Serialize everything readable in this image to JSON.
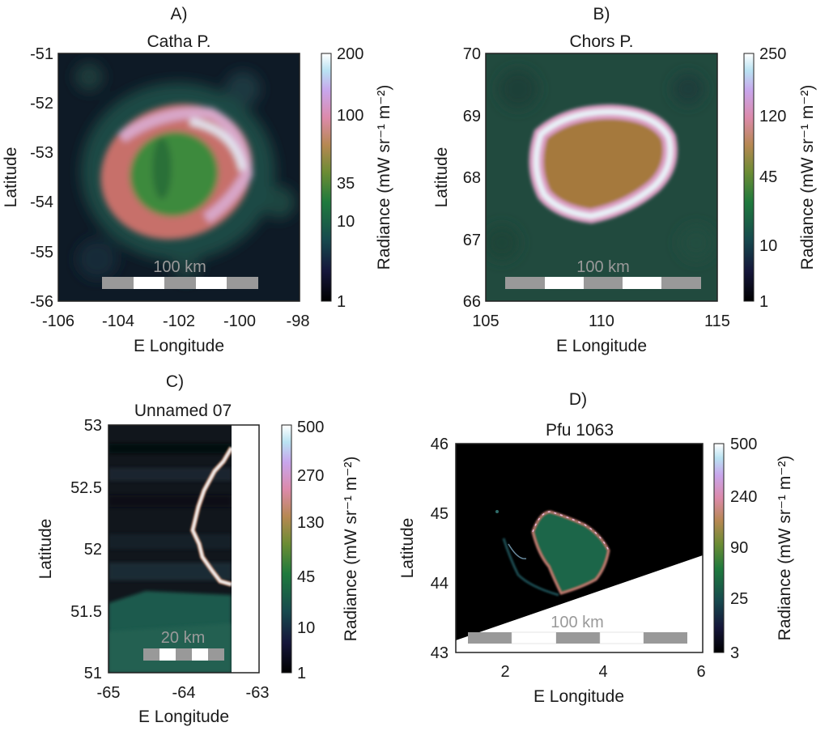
{
  "chart_data": [
    {
      "type": "heatmap",
      "panel": "A)",
      "title": "Catha P.",
      "xlabel": "E Longitude",
      "ylabel": "Latitude",
      "xlim": [
        -106,
        -98
      ],
      "ylim": [
        -56,
        -51
      ],
      "xticks": [
        "-106",
        "-104",
        "-102",
        "-100",
        "-98"
      ],
      "yticks": [
        "-56",
        "-55",
        "-54",
        "-53",
        "-52",
        "-51"
      ],
      "colorbar": {
        "label": "Radiance (mW sr⁻¹ m⁻²)",
        "ticks": [
          "1",
          "10",
          "35",
          "100",
          "200"
        ]
      },
      "scale_bar": "100 km"
    },
    {
      "type": "heatmap",
      "panel": "B)",
      "title": "Chors P.",
      "xlabel": "E Longitude",
      "ylabel": "Latitude",
      "xlim": [
        105,
        115
      ],
      "ylim": [
        66,
        70
      ],
      "xticks": [
        "105",
        "110",
        "115"
      ],
      "yticks": [
        "66",
        "67",
        "68",
        "69",
        "70"
      ],
      "colorbar": {
        "label": "Radiance (mW sr⁻¹ m⁻²)",
        "ticks": [
          "1",
          "10",
          "45",
          "120",
          "250"
        ]
      },
      "scale_bar": "100 km"
    },
    {
      "type": "heatmap",
      "panel": "C)",
      "title": "Unnamed 07",
      "xlabel": "E Longitude",
      "ylabel": "Latitude",
      "xlim": [
        -65,
        -63
      ],
      "ylim": [
        51,
        53
      ],
      "xticks": [
        "-65",
        "-64",
        "-63"
      ],
      "yticks": [
        "51",
        "51.5",
        "52",
        "52.5",
        "53"
      ],
      "colorbar": {
        "label": "Radiance (mW sr⁻¹ m⁻²)",
        "ticks": [
          "1",
          "10",
          "45",
          "130",
          "270",
          "500"
        ]
      },
      "scale_bar": "20 km"
    },
    {
      "type": "heatmap",
      "panel": "D)",
      "title": "Pfu 1063",
      "xlabel": "E Longitude",
      "ylabel": "Latitude",
      "xlim": [
        1,
        6
      ],
      "ylim": [
        43,
        46
      ],
      "xticks": [
        "2",
        "4",
        "6"
      ],
      "yticks": [
        "43",
        "44",
        "45",
        "46"
      ],
      "colorbar": {
        "label": "Radiance (mW sr⁻¹ m⁻²)",
        "ticks": [
          "3",
          "25",
          "90",
          "240",
          "500"
        ]
      },
      "scale_bar": "100 km"
    }
  ]
}
